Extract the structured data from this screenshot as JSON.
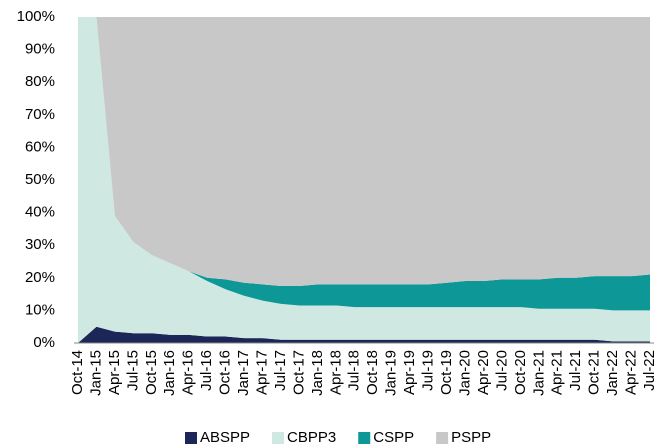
{
  "chart_data": {
    "type": "area",
    "stacked": true,
    "categories": [
      "Oct-14",
      "Jan-15",
      "Apr-15",
      "Jul-15",
      "Oct-15",
      "Jan-16",
      "Apr-16",
      "Jul-16",
      "Oct-16",
      "Jan-17",
      "Apr-17",
      "Jul-17",
      "Oct-17",
      "Jan-18",
      "Apr-18",
      "Jul-18",
      "Oct-18",
      "Jan-19",
      "Apr-19",
      "Jul-19",
      "Oct-19",
      "Jan-20",
      "Apr-20",
      "Jul-20",
      "Oct-20",
      "Jan-21",
      "Apr-21",
      "Jul-21",
      "Oct-21",
      "Jan-22",
      "Apr-22",
      "Jul-22"
    ],
    "series": [
      {
        "name": "ABSPP",
        "color": "#1c2657",
        "values": [
          0,
          5,
          3.5,
          3,
          3,
          2.5,
          2.5,
          2,
          2,
          1.5,
          1.5,
          1,
          1,
          1,
          1,
          1,
          1,
          1,
          1,
          1,
          1,
          1,
          1,
          1,
          1,
          1,
          1,
          1,
          1,
          0.5,
          0.5,
          0.5
        ]
      },
      {
        "name": "CBPP3",
        "color": "#cfe8e2",
        "values": [
          100,
          95,
          35.5,
          28,
          24,
          22,
          19.5,
          17,
          14.5,
          13,
          11.5,
          11,
          10.5,
          10.5,
          10.5,
          10,
          10,
          10,
          10,
          10,
          10,
          10,
          10,
          10,
          10,
          9.5,
          9.5,
          9.5,
          9.5,
          9.5,
          9.5,
          9.5
        ]
      },
      {
        "name": "CSPP",
        "color": "#0e9797",
        "values": [
          0,
          0,
          0,
          0,
          0,
          0,
          0,
          1,
          3,
          4,
          5,
          5.5,
          6,
          6.5,
          6.5,
          7,
          7,
          7,
          7,
          7,
          7.5,
          8,
          8,
          8.5,
          8.5,
          9,
          9.5,
          9.5,
          10,
          10.5,
          10.5,
          11
        ]
      },
      {
        "name": "PSPP",
        "color": "#c8c8c8",
        "values": [
          0,
          0,
          61,
          69,
          73,
          75.5,
          78,
          80,
          80.5,
          81.5,
          82,
          82.5,
          82.5,
          82,
          82,
          82,
          82,
          82,
          82,
          82,
          81.5,
          81,
          81,
          80.5,
          80.5,
          80.5,
          80,
          80,
          79.5,
          79.5,
          79.5,
          79
        ]
      }
    ],
    "ylim": [
      0,
      100
    ],
    "yticks": [
      {
        "value": 0,
        "label": "0%"
      },
      {
        "value": 10,
        "label": "10%"
      },
      {
        "value": 20,
        "label": "20%"
      },
      {
        "value": 30,
        "label": "30%"
      },
      {
        "value": 40,
        "label": "40%"
      },
      {
        "value": 50,
        "label": "50%"
      },
      {
        "value": 60,
        "label": "60%"
      },
      {
        "value": 70,
        "label": "70%"
      },
      {
        "value": 80,
        "label": "80%"
      },
      {
        "value": 90,
        "label": "90%"
      },
      {
        "value": 100,
        "label": "100%"
      }
    ],
    "legend": "bottom"
  }
}
